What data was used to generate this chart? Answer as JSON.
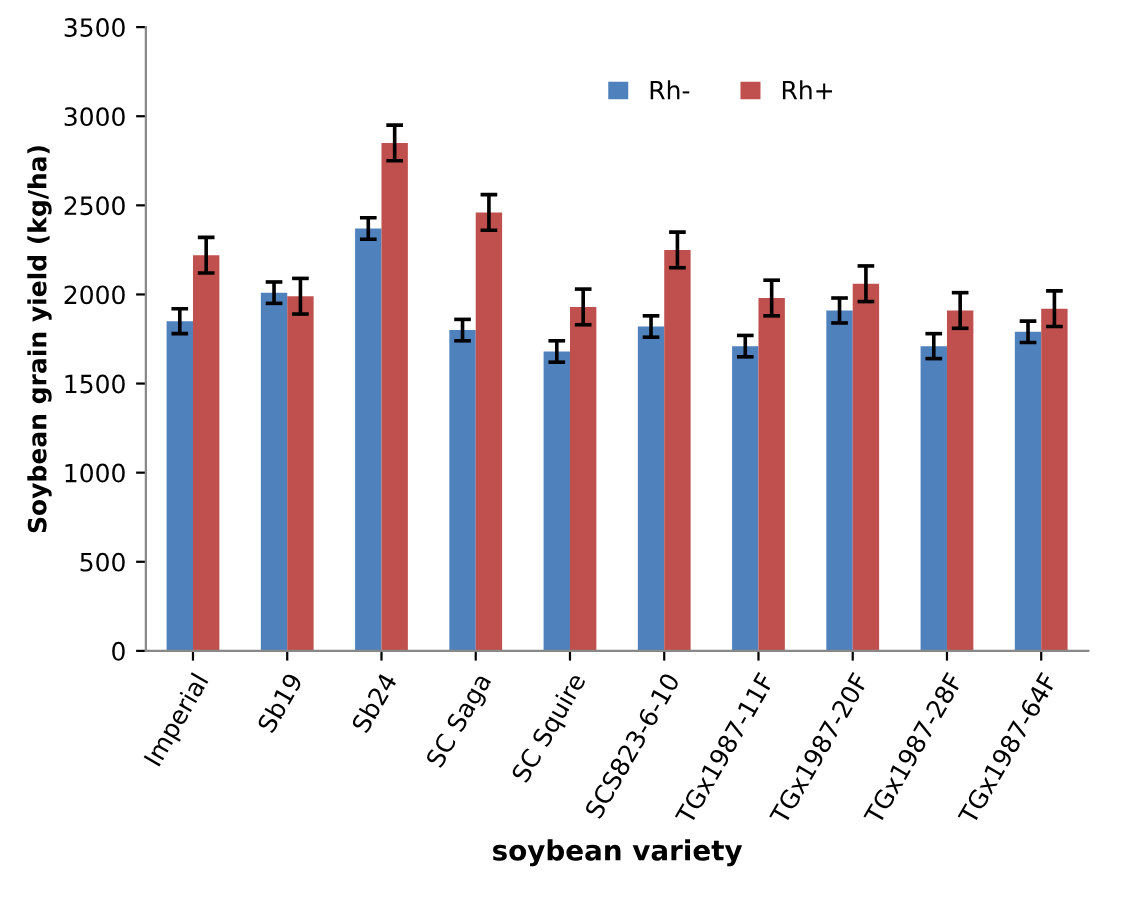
{
  "chart_data": {
    "type": "bar",
    "xlabel": "soybean variety",
    "ylabel": "Soybean grain yield (kg/ha)",
    "categories": [
      "Imperial",
      "Sb19",
      "Sb24",
      "SC Saga",
      "SC Squire",
      "SCS823-6-10",
      "TGx1987-11F",
      "TGx1987-20F",
      "TGx1987-28F",
      "TGx1987-64F"
    ],
    "series": [
      {
        "name": "Rh-",
        "color": "#4f81bd",
        "values": [
          1850,
          2010,
          2370,
          1800,
          1680,
          1820,
          1710,
          1910,
          1710,
          1790
        ],
        "errors": [
          70,
          60,
          60,
          60,
          60,
          60,
          60,
          70,
          70,
          60
        ]
      },
      {
        "name": "Rh+",
        "color": "#c0504d",
        "values": [
          2220,
          1990,
          2850,
          2460,
          1930,
          2250,
          1980,
          2060,
          1910,
          1920
        ],
        "errors": [
          100,
          100,
          100,
          100,
          100,
          100,
          100,
          100,
          100,
          100
        ]
      }
    ],
    "ylim": [
      0,
      3500
    ],
    "yticks": [
      0,
      500,
      1000,
      1500,
      2000,
      2500,
      3000,
      3500
    ],
    "grid": false,
    "legend": "top right"
  }
}
